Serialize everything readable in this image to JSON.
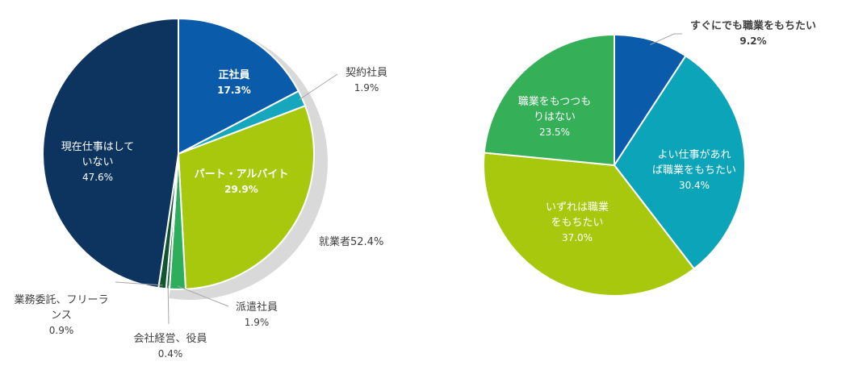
{
  "chart_data": [
    {
      "type": "pie",
      "title": "",
      "categories": [
        "正社員",
        "契約社員",
        "パート・アルバイト",
        "派遣社員",
        "会社経営、役員",
        "業務委託、フリーランス",
        "現在仕事はしていない"
      ],
      "values": [
        17.3,
        1.9,
        29.9,
        1.9,
        0.4,
        0.9,
        47.6
      ],
      "value_labels": [
        "17.3%",
        "1.9%",
        "29.9%",
        "1.9%",
        "0.4%",
        "0.9%",
        "47.6%"
      ],
      "colors": [
        "#0a5caa",
        "#17a7bc",
        "#a8c80e",
        "#2eae5a",
        "#1f6b3c",
        "#0f5530",
        "#0c345e"
      ],
      "label_lines": [
        [
          "正社員"
        ],
        [
          "契約社員"
        ],
        [
          "パート・アルバイト"
        ],
        [
          "派遣社員"
        ],
        [
          "会社経営、役員"
        ],
        [
          "業務委託、フリーラ",
          "ンス"
        ],
        [
          "現在仕事はして",
          "いない"
        ]
      ],
      "group_annotation": {
        "label": "就業者52.4%",
        "value": 52.4,
        "color": "#d9d9d9"
      }
    },
    {
      "type": "pie",
      "title": "",
      "categories": [
        "すぐにでも職業をもちたい",
        "よい仕事があれば職業をもちたい",
        "いずれは職業をもちたい",
        "職業をもつつもりはない"
      ],
      "values": [
        9.2,
        30.4,
        37.0,
        23.5
      ],
      "value_labels": [
        "9.2%",
        "30.4%",
        "37.0%",
        "23.5%"
      ],
      "colors": [
        "#0a5caa",
        "#0ba4b8",
        "#a8c80e",
        "#35b059"
      ],
      "label_lines": [
        [
          "すぐにでも職業をもちたい"
        ],
        [
          "よい仕事があれ",
          "ば職業をもちたい"
        ],
        [
          "いずれは職業",
          "をもちたい"
        ],
        [
          "職業をもつつも",
          "りはない"
        ]
      ]
    }
  ]
}
